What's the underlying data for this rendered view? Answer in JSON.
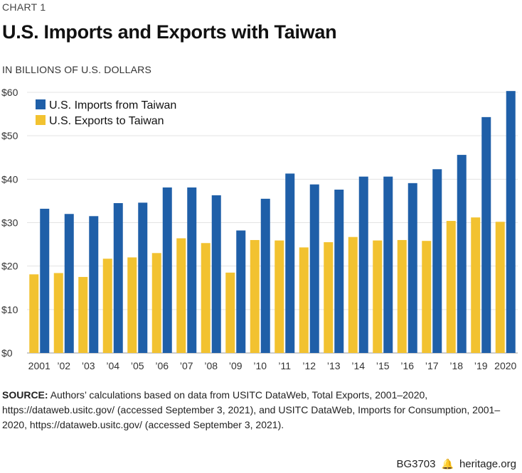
{
  "header": {
    "kicker": "CHART 1",
    "title": "U.S. Imports and Exports with Taiwan",
    "units": "IN BILLIONS OF U.S. DOLLARS"
  },
  "chart_data": {
    "type": "bar",
    "title": "U.S. Imports and Exports with Taiwan",
    "ylabel": "IN BILLIONS OF U.S. DOLLARS",
    "xlabel": "",
    "ylim": [
      0,
      60
    ],
    "yticks": [
      0,
      10,
      20,
      30,
      40,
      50,
      60
    ],
    "ytick_labels": [
      "$0",
      "$10",
      "$20",
      "$30",
      "$40",
      "$50",
      "$60"
    ],
    "categories": [
      "2001",
      "’02",
      "’03",
      "’04",
      "’05",
      "’06",
      "’07",
      "’08",
      "’09",
      "’10",
      "’11",
      "’12",
      "’13",
      "’14",
      "’15",
      "’16",
      "’17",
      "’18",
      "’19",
      "2020"
    ],
    "series": [
      {
        "name": "U.S. Imports from Taiwan",
        "color": "#1f5fa8",
        "values": [
          33.2,
          32.0,
          31.5,
          34.5,
          34.6,
          38.1,
          38.1,
          36.3,
          28.2,
          35.5,
          41.3,
          38.8,
          37.6,
          40.6,
          40.6,
          39.1,
          42.3,
          45.6,
          54.3,
          60.3
        ]
      },
      {
        "name": "U.S. Exports  to Taiwan",
        "color": "#f2c230",
        "values": [
          18.1,
          18.4,
          17.5,
          21.7,
          22.0,
          23.0,
          26.4,
          25.3,
          18.5,
          26.0,
          25.9,
          24.3,
          25.5,
          26.7,
          25.9,
          26.0,
          25.8,
          30.4,
          31.2,
          30.2
        ]
      }
    ],
    "legend_position": "top-left",
    "grid": true
  },
  "source": {
    "label": "SOURCE:",
    "text": "Authors’ calculations based on data from USITC DataWeb, Total Exports, 2001–2020, https://dataweb.usitc.gov/ (accessed September 3, 2021), and USITC DataWeb, Imports for Consumption, 2001–2020, https://dataweb.usitc.gov/ (accessed September 3, 2021)."
  },
  "footer": {
    "code": "BG3703",
    "icon": "liberty-bell-icon",
    "site": "heritage.org"
  }
}
